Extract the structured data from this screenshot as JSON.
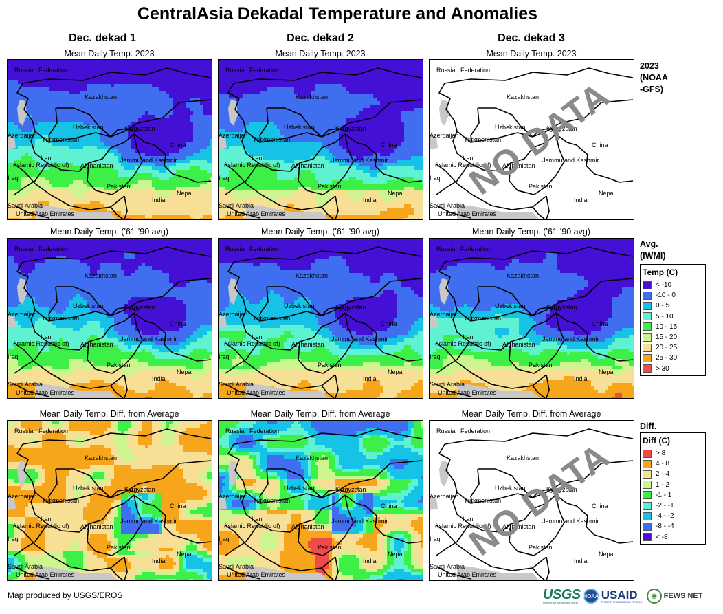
{
  "title": "CentralAsia Dekadal Temperature and Anomalies",
  "columns": [
    "Dec. dekad 1",
    "Dec. dekad 2",
    "Dec. dekad 3"
  ],
  "rows": [
    {
      "map_title": "Mean Daily Temp. 2023",
      "side_label": "2023\n(NOAA\n-GFS)"
    },
    {
      "map_title": "Mean Daily Temp. ('61-'90 avg)",
      "side_label": "Avg.\n(IWMI)"
    },
    {
      "map_title": "Mean Daily Temp. Diff. from Average",
      "side_label": "Diff."
    }
  ],
  "no_data_text": "NO DATA",
  "place_labels": {
    "russia": "Russian Federation",
    "kazakhstan": "Kazakhstan",
    "uzbekistan": "Uzbekistan",
    "kyrgyzstan": "Kyrgyzstan",
    "azerbaijan": "Azerbaijan",
    "turkmenistan": "Turkmenistan",
    "china": "China",
    "iran1": "Iran",
    "iran2": "(Islamic Republic of)",
    "afghanistan": "Afghanistan",
    "jammu": "Jammu and Kashmir",
    "iraq": "Iraq",
    "pakistan": "Pakistan",
    "nepal": "Nepal",
    "india": "India",
    "saudi": "Saudi Arabia",
    "uae": "United Arab Emirates"
  },
  "legend_temp": {
    "title": "Temp (C)",
    "items": [
      {
        "label": "< -10",
        "color": "#4410d6"
      },
      {
        "label": "-10 - 0",
        "color": "#3f6ff0"
      },
      {
        "label": "0 - 5",
        "color": "#16c3e6"
      },
      {
        "label": "5 - 10",
        "color": "#5ff2d2"
      },
      {
        "label": "10 - 15",
        "color": "#3cf048"
      },
      {
        "label": "15 - 20",
        "color": "#ccf590"
      },
      {
        "label": "20 - 25",
        "color": "#f7df96"
      },
      {
        "label": "25 - 30",
        "color": "#f7a51a"
      },
      {
        "label": "> 30",
        "color": "#f04a4a"
      }
    ]
  },
  "legend_diff": {
    "title": "Diff (C)",
    "items": [
      {
        "label": "> 8",
        "color": "#f04a4a"
      },
      {
        "label": "4 - 8",
        "color": "#f7a51a"
      },
      {
        "label": "2 - 4",
        "color": "#f7df96"
      },
      {
        "label": "1 - 2",
        "color": "#ccf590"
      },
      {
        "label": "-1 - 1",
        "color": "#3cf048"
      },
      {
        "label": "-2 - -1",
        "color": "#5ff2d2"
      },
      {
        "label": "-4 - -2",
        "color": "#16c3e6"
      },
      {
        "label": "-8 - -4",
        "color": "#3f6ff0"
      },
      {
        "label": "< -8",
        "color": "#4410d6"
      }
    ]
  },
  "footer": "Map produced by USGS/EROS",
  "logos": {
    "usgs": "USGS",
    "usgs_tag": "science for a changing world",
    "noaa": "NOAA",
    "usaid": "USAID",
    "usaid_tag": "FROM THE AMERICAN PEOPLE",
    "fews": "FEWS NET"
  },
  "colors": {
    "land_nodata": "#ffffff",
    "water": "#c8c8c8",
    "border": "#000000"
  }
}
